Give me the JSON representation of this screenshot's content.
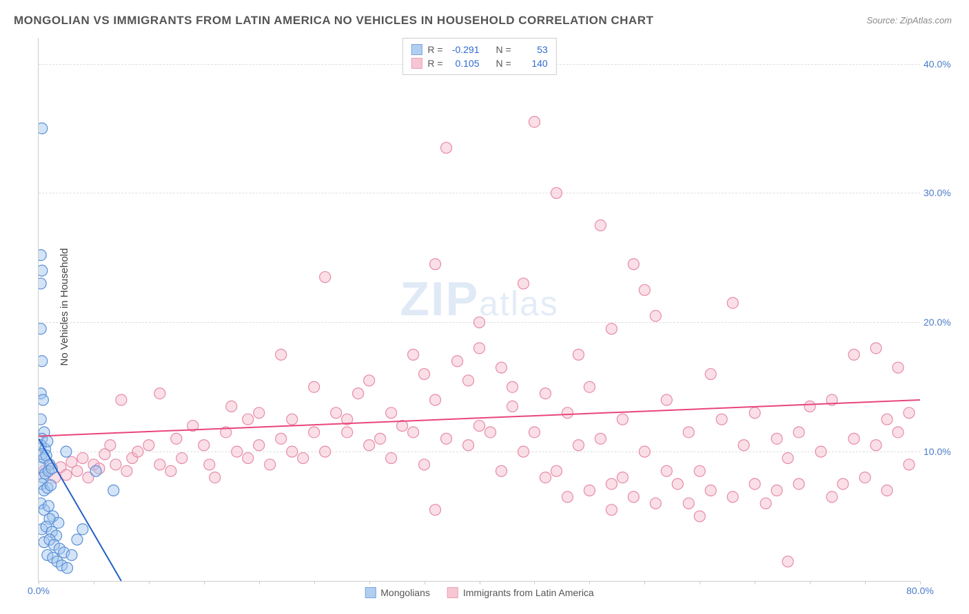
{
  "title": "MONGOLIAN VS IMMIGRANTS FROM LATIN AMERICA NO VEHICLES IN HOUSEHOLD CORRELATION CHART",
  "source": "Source: ZipAtlas.com",
  "ylabel": "No Vehicles in Household",
  "watermark_main": "ZIP",
  "watermark_sub": "atlas",
  "chart": {
    "type": "scatter",
    "background_color": "#ffffff",
    "grid_color": "#dddddd",
    "axis_color": "#cccccc",
    "tick_label_color": "#4a7ac7",
    "tick_fontsize": 14,
    "ylabel_color": "#444444",
    "ylabel_fontsize": 15,
    "xlim": [
      0,
      80
    ],
    "ylim": [
      0,
      42
    ],
    "yticks": [
      10,
      20,
      30,
      40
    ],
    "ytick_labels": [
      "10.0%",
      "20.0%",
      "30.0%",
      "40.0%"
    ],
    "xticks_minor": [
      0,
      5,
      10,
      15,
      20,
      25,
      30,
      35,
      40,
      45,
      50,
      55,
      60,
      65,
      70,
      75,
      80
    ],
    "xtick_label_left": "0.0%",
    "xtick_label_right": "80.0%",
    "marker_radius": 8,
    "marker_stroke_width": 1.2,
    "line_width": 2
  },
  "series": [
    {
      "name": "Mongolians",
      "fill_color": "#9ec3ed",
      "stroke_color": "#5a8fd6",
      "fill_opacity": 0.45,
      "trend_color": "#1f5fc4",
      "R": "-0.291",
      "N": "53",
      "trend_line": {
        "x1": 0,
        "y1": 11.0,
        "x2": 7.5,
        "y2": 0
      },
      "points": [
        [
          0.3,
          35.0
        ],
        [
          0.2,
          25.2
        ],
        [
          0.3,
          24.0
        ],
        [
          0.2,
          23.0
        ],
        [
          0.2,
          19.5
        ],
        [
          0.3,
          17.0
        ],
        [
          0.2,
          14.5
        ],
        [
          0.4,
          14.0
        ],
        [
          0.2,
          12.5
        ],
        [
          0.5,
          11.5
        ],
        [
          0.3,
          11.0
        ],
        [
          0.2,
          10.5
        ],
        [
          0.6,
          10.2
        ],
        [
          0.8,
          10.8
        ],
        [
          0.3,
          9.8
        ],
        [
          0.5,
          9.5
        ],
        [
          0.7,
          9.7
        ],
        [
          1.0,
          9.0
        ],
        [
          0.2,
          8.8
        ],
        [
          0.4,
          8.0
        ],
        [
          0.6,
          8.3
        ],
        [
          0.9,
          8.5
        ],
        [
          1.2,
          8.7
        ],
        [
          2.5,
          10.0
        ],
        [
          0.3,
          7.5
        ],
        [
          0.5,
          7.0
        ],
        [
          0.8,
          7.2
        ],
        [
          1.1,
          7.4
        ],
        [
          5.2,
          8.5
        ],
        [
          6.8,
          7.0
        ],
        [
          0.2,
          6.0
        ],
        [
          0.5,
          5.5
        ],
        [
          0.9,
          5.8
        ],
        [
          1.3,
          5.0
        ],
        [
          1.8,
          4.5
        ],
        [
          1.0,
          4.8
        ],
        [
          0.3,
          4.0
        ],
        [
          0.7,
          4.2
        ],
        [
          1.2,
          3.8
        ],
        [
          1.6,
          3.5
        ],
        [
          0.5,
          3.0
        ],
        [
          1.0,
          3.2
        ],
        [
          1.4,
          2.8
        ],
        [
          1.9,
          2.5
        ],
        [
          2.3,
          2.2
        ],
        [
          0.8,
          2.0
        ],
        [
          1.3,
          1.8
        ],
        [
          1.7,
          1.5
        ],
        [
          2.1,
          1.2
        ],
        [
          2.6,
          1.0
        ],
        [
          3.0,
          2.0
        ],
        [
          3.5,
          3.2
        ],
        [
          4.0,
          4.0
        ]
      ]
    },
    {
      "name": "Immigrants from Latin America",
      "fill_color": "#f5b8c9",
      "stroke_color": "#e68aa8",
      "fill_opacity": 0.45,
      "trend_color": "#e8457a",
      "R": "0.105",
      "N": "140",
      "trend_line": {
        "x1": 0,
        "y1": 11.2,
        "x2": 80,
        "y2": 14.0
      },
      "points": [
        [
          0.5,
          8.5
        ],
        [
          1.0,
          9.0
        ],
        [
          1.5,
          8.0
        ],
        [
          2.0,
          8.8
        ],
        [
          2.5,
          8.2
        ],
        [
          3.0,
          9.2
        ],
        [
          3.5,
          8.5
        ],
        [
          4.0,
          9.5
        ],
        [
          4.5,
          8.0
        ],
        [
          5.0,
          9.0
        ],
        [
          5.5,
          8.7
        ],
        [
          6.0,
          9.8
        ],
        [
          6.5,
          10.5
        ],
        [
          7.0,
          9.0
        ],
        [
          7.5,
          14.0
        ],
        [
          8.0,
          8.5
        ],
        [
          8.5,
          9.5
        ],
        [
          9.0,
          10.0
        ],
        [
          10.0,
          10.5
        ],
        [
          11.0,
          14.5
        ],
        [
          11.0,
          9.0
        ],
        [
          12.0,
          8.5
        ],
        [
          12.5,
          11.0
        ],
        [
          13.0,
          9.5
        ],
        [
          14.0,
          12.0
        ],
        [
          15.0,
          10.5
        ],
        [
          15.5,
          9.0
        ],
        [
          16.0,
          8.0
        ],
        [
          17.0,
          11.5
        ],
        [
          17.5,
          13.5
        ],
        [
          18.0,
          10.0
        ],
        [
          19.0,
          12.5
        ],
        [
          19.0,
          9.5
        ],
        [
          20.0,
          13.0
        ],
        [
          20.0,
          10.5
        ],
        [
          21.0,
          9.0
        ],
        [
          22.0,
          17.5
        ],
        [
          22.0,
          11.0
        ],
        [
          23.0,
          12.5
        ],
        [
          23.0,
          10.0
        ],
        [
          24.0,
          9.5
        ],
        [
          25.0,
          11.5
        ],
        [
          25.0,
          15.0
        ],
        [
          26.0,
          23.5
        ],
        [
          26.0,
          10.0
        ],
        [
          27.0,
          13.0
        ],
        [
          28.0,
          11.5
        ],
        [
          28.0,
          12.5
        ],
        [
          29.0,
          14.5
        ],
        [
          30.0,
          15.5
        ],
        [
          30.0,
          10.5
        ],
        [
          31.0,
          11.0
        ],
        [
          32.0,
          9.5
        ],
        [
          32.0,
          13.0
        ],
        [
          33.0,
          12.0
        ],
        [
          34.0,
          17.5
        ],
        [
          34.0,
          11.5
        ],
        [
          35.0,
          16.0
        ],
        [
          35.0,
          9.0
        ],
        [
          36.0,
          14.0
        ],
        [
          36.0,
          24.5
        ],
        [
          37.0,
          11.0
        ],
        [
          37.0,
          33.5
        ],
        [
          38.0,
          17.0
        ],
        [
          39.0,
          15.5
        ],
        [
          39.0,
          10.5
        ],
        [
          40.0,
          20.0
        ],
        [
          40.0,
          18.0
        ],
        [
          40.0,
          12.0
        ],
        [
          41.0,
          11.5
        ],
        [
          42.0,
          16.5
        ],
        [
          42.0,
          8.5
        ],
        [
          43.0,
          15.0
        ],
        [
          43.0,
          13.5
        ],
        [
          44.0,
          23.0
        ],
        [
          44.0,
          10.0
        ],
        [
          45.0,
          35.5
        ],
        [
          45.0,
          11.5
        ],
        [
          46.0,
          8.0
        ],
        [
          46.0,
          14.5
        ],
        [
          47.0,
          30.0
        ],
        [
          47.0,
          8.5
        ],
        [
          48.0,
          6.5
        ],
        [
          48.0,
          13.0
        ],
        [
          49.0,
          17.5
        ],
        [
          49.0,
          10.5
        ],
        [
          50.0,
          7.0
        ],
        [
          50.0,
          15.0
        ],
        [
          51.0,
          27.5
        ],
        [
          51.0,
          11.0
        ],
        [
          52.0,
          19.5
        ],
        [
          52.0,
          7.5
        ],
        [
          53.0,
          12.5
        ],
        [
          53.0,
          8.0
        ],
        [
          54.0,
          24.5
        ],
        [
          54.0,
          6.5
        ],
        [
          55.0,
          22.5
        ],
        [
          55.0,
          10.0
        ],
        [
          56.0,
          20.5
        ],
        [
          56.0,
          6.0
        ],
        [
          57.0,
          8.5
        ],
        [
          57.0,
          14.0
        ],
        [
          58.0,
          7.5
        ],
        [
          59.0,
          11.5
        ],
        [
          59.0,
          6.0
        ],
        [
          60.0,
          8.5
        ],
        [
          61.0,
          7.0
        ],
        [
          61.0,
          16.0
        ],
        [
          62.0,
          12.5
        ],
        [
          63.0,
          6.5
        ],
        [
          63.0,
          21.5
        ],
        [
          64.0,
          10.5
        ],
        [
          65.0,
          7.5
        ],
        [
          65.0,
          13.0
        ],
        [
          66.0,
          6.0
        ],
        [
          67.0,
          11.0
        ],
        [
          67.0,
          7.0
        ],
        [
          68.0,
          9.5
        ],
        [
          69.0,
          11.5
        ],
        [
          69.0,
          7.5
        ],
        [
          70.0,
          13.5
        ],
        [
          71.0,
          10.0
        ],
        [
          72.0,
          6.5
        ],
        [
          72.0,
          14.0
        ],
        [
          73.0,
          7.5
        ],
        [
          74.0,
          11.0
        ],
        [
          74.0,
          17.5
        ],
        [
          75.0,
          8.0
        ],
        [
          76.0,
          10.5
        ],
        [
          76.0,
          18.0
        ],
        [
          77.0,
          12.5
        ],
        [
          77.0,
          7.0
        ],
        [
          78.0,
          11.5
        ],
        [
          78.0,
          16.5
        ],
        [
          79.0,
          9.0
        ],
        [
          79.0,
          13.0
        ],
        [
          68.0,
          1.5
        ],
        [
          52.0,
          5.5
        ],
        [
          36.0,
          5.5
        ],
        [
          60.0,
          5.0
        ]
      ]
    }
  ],
  "stats_labels": {
    "R": "R =",
    "N": "N ="
  },
  "legend": {
    "swatch_border_width": 1
  }
}
